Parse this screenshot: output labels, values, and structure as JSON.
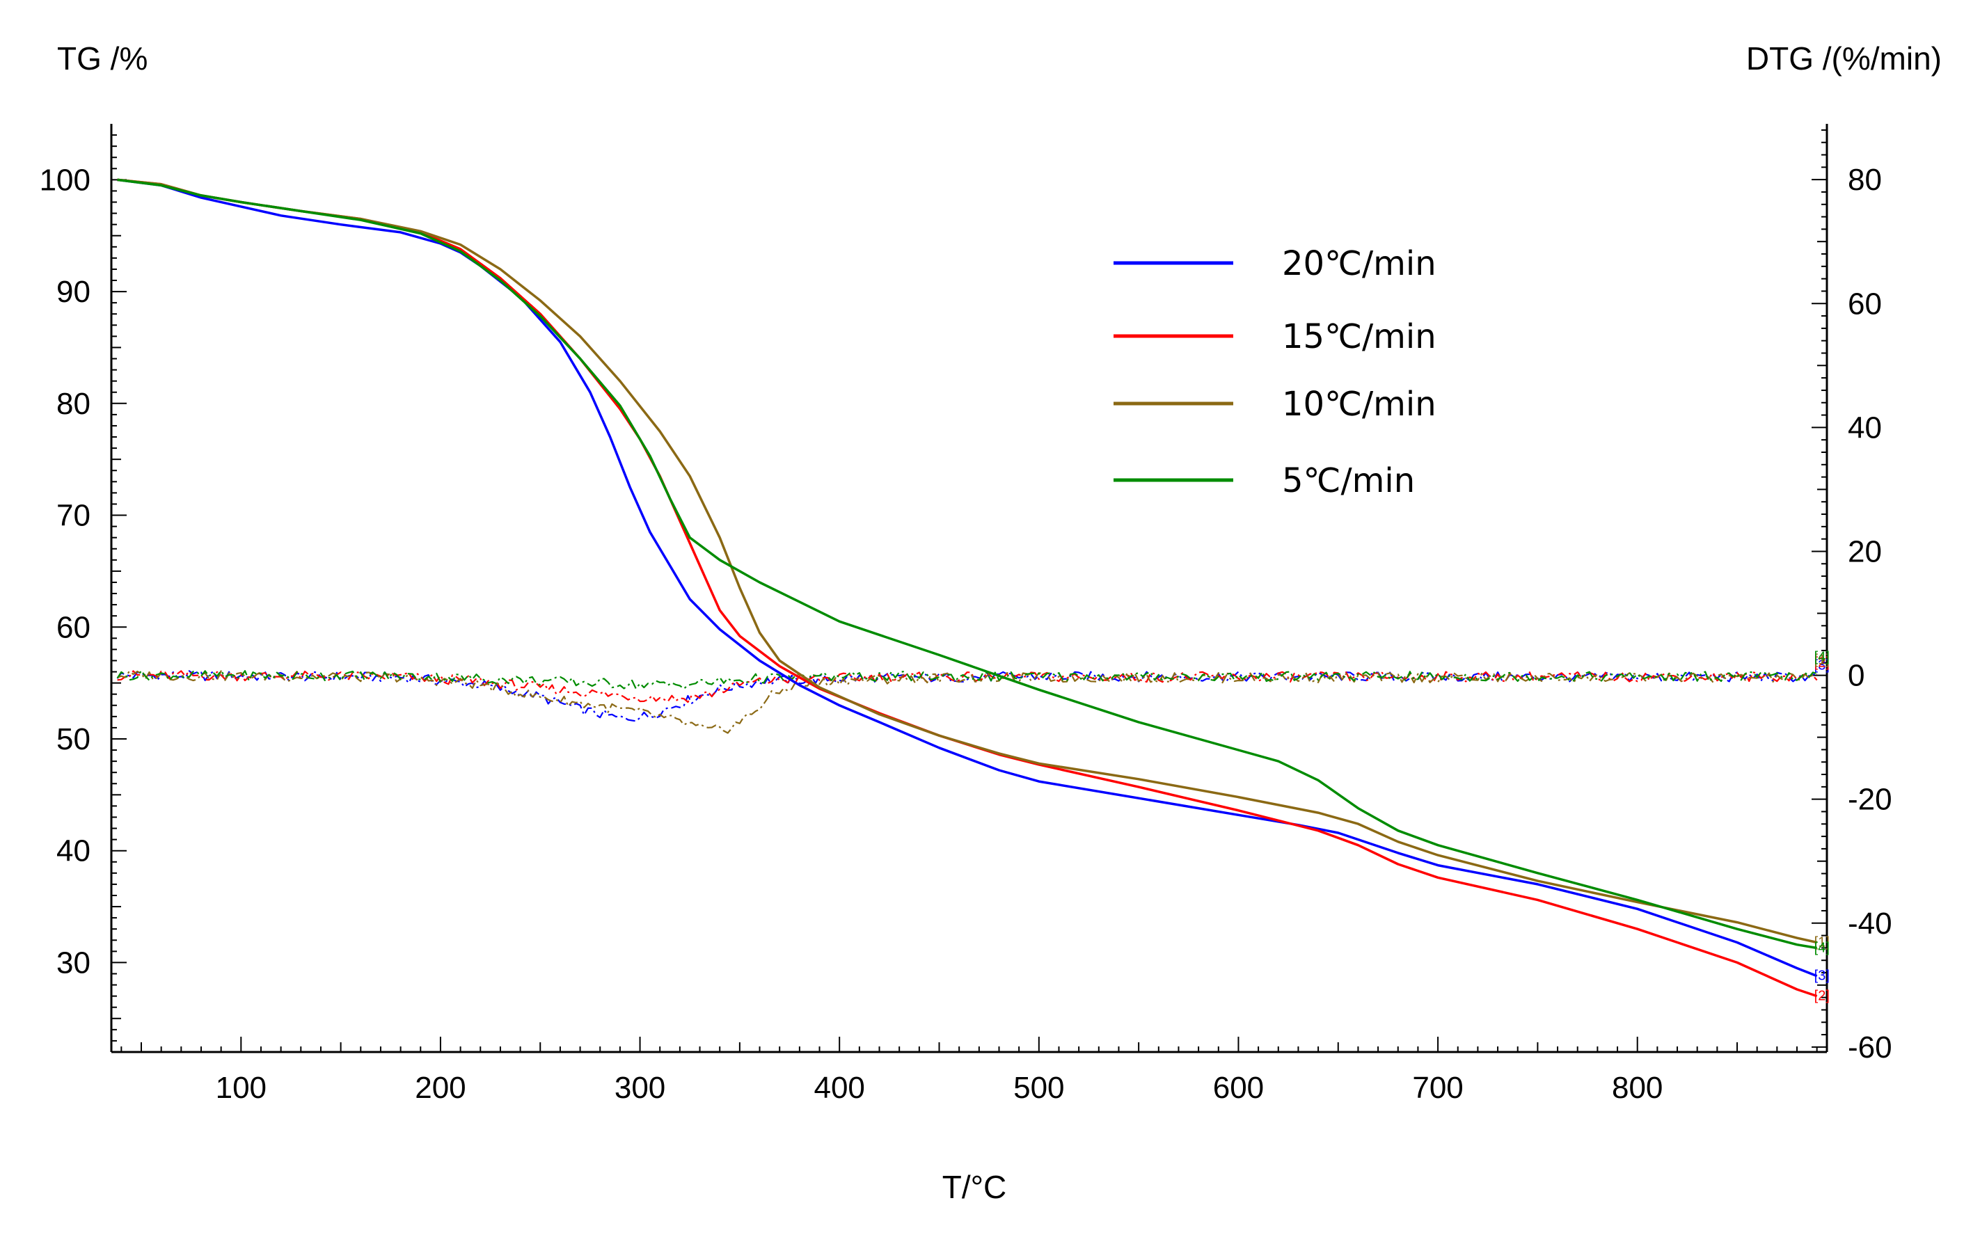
{
  "chart_data": {
    "type": "line",
    "title": "",
    "xlabel": "T/°C",
    "ylabel": "TG /%",
    "y2label": "DTG /(%/min)",
    "xlim": [
      35,
      895
    ],
    "ylim": [
      22,
      105
    ],
    "y2lim": [
      -60.8,
      89
    ],
    "x_ticks": [
      100,
      200,
      300,
      400,
      500,
      600,
      700,
      800
    ],
    "y_ticks": [
      30,
      40,
      50,
      60,
      70,
      80,
      90,
      100
    ],
    "y2_ticks": [
      -60,
      -40,
      -20,
      0,
      20,
      40,
      60,
      80
    ],
    "grid": false,
    "legend_position": "top-right",
    "series": [
      {
        "name": "20℃/min",
        "color": "#0000ff",
        "end_marker": "[3]",
        "tg": [
          [
            38,
            100
          ],
          [
            60,
            99.5
          ],
          [
            80,
            98.4
          ],
          [
            100,
            97.6
          ],
          [
            120,
            96.8
          ],
          [
            150,
            96.0
          ],
          [
            180,
            95.3
          ],
          [
            200,
            94.3
          ],
          [
            210,
            93.5
          ],
          [
            220,
            92.3
          ],
          [
            240,
            89.5
          ],
          [
            260,
            85.5
          ],
          [
            275,
            81.0
          ],
          [
            285,
            77.0
          ],
          [
            295,
            72.5
          ],
          [
            305,
            68.5
          ],
          [
            315,
            65.5
          ],
          [
            325,
            62.5
          ],
          [
            340,
            59.8
          ],
          [
            360,
            57.0
          ],
          [
            380,
            54.8
          ],
          [
            400,
            53.0
          ],
          [
            420,
            51.5
          ],
          [
            450,
            49.2
          ],
          [
            480,
            47.2
          ],
          [
            500,
            46.2
          ],
          [
            550,
            44.7
          ],
          [
            600,
            43.2
          ],
          [
            630,
            42.3
          ],
          [
            650,
            41.6
          ],
          [
            680,
            39.8
          ],
          [
            700,
            38.7
          ],
          [
            750,
            37.0
          ],
          [
            800,
            34.8
          ],
          [
            850,
            31.8
          ],
          [
            880,
            29.5
          ],
          [
            890,
            28.8
          ]
        ],
        "dtg": [
          [
            38,
            0
          ],
          [
            180,
            -0.3
          ],
          [
            220,
            -1.5
          ],
          [
            250,
            -3.5
          ],
          [
            270,
            -5.5
          ],
          [
            290,
            -7.0
          ],
          [
            305,
            -6.5
          ],
          [
            320,
            -4.5
          ],
          [
            340,
            -2.2
          ],
          [
            360,
            -1.0
          ],
          [
            400,
            -0.5
          ],
          [
            500,
            -0.2
          ],
          [
            890,
            -0.3
          ]
        ]
      },
      {
        "name": "15℃/min",
        "color": "#ff0000",
        "end_marker": "[2]",
        "tg": [
          [
            38,
            100
          ],
          [
            60,
            99.6
          ],
          [
            80,
            98.6
          ],
          [
            100,
            98.0
          ],
          [
            130,
            97.2
          ],
          [
            160,
            96.5
          ],
          [
            190,
            95.3
          ],
          [
            210,
            93.8
          ],
          [
            230,
            91.2
          ],
          [
            250,
            88.0
          ],
          [
            270,
            84.0
          ],
          [
            290,
            79.5
          ],
          [
            300,
            76.8
          ],
          [
            310,
            73.5
          ],
          [
            320,
            69.5
          ],
          [
            330,
            65.5
          ],
          [
            340,
            61.5
          ],
          [
            350,
            59.2
          ],
          [
            370,
            56.5
          ],
          [
            390,
            54.5
          ],
          [
            420,
            52.3
          ],
          [
            450,
            50.3
          ],
          [
            480,
            48.6
          ],
          [
            500,
            47.7
          ],
          [
            550,
            45.7
          ],
          [
            600,
            43.6
          ],
          [
            640,
            41.8
          ],
          [
            660,
            40.5
          ],
          [
            680,
            38.8
          ],
          [
            700,
            37.6
          ],
          [
            750,
            35.6
          ],
          [
            800,
            33.0
          ],
          [
            850,
            30.0
          ],
          [
            880,
            27.6
          ],
          [
            890,
            27.0
          ]
        ],
        "dtg": [
          [
            38,
            0
          ],
          [
            180,
            -0.2
          ],
          [
            220,
            -1.0
          ],
          [
            250,
            -2.0
          ],
          [
            280,
            -3.0
          ],
          [
            300,
            -3.5
          ],
          [
            320,
            -3.8
          ],
          [
            335,
            -3.0
          ],
          [
            350,
            -1.5
          ],
          [
            370,
            -0.7
          ],
          [
            420,
            -0.3
          ],
          [
            890,
            -0.2
          ]
        ]
      },
      {
        "name": "10℃/min",
        "color": "#8b6914",
        "end_marker": "[1]",
        "tg": [
          [
            38,
            100
          ],
          [
            60,
            99.6
          ],
          [
            80,
            98.6
          ],
          [
            100,
            98.0
          ],
          [
            130,
            97.2
          ],
          [
            160,
            96.5
          ],
          [
            190,
            95.4
          ],
          [
            210,
            94.2
          ],
          [
            230,
            92.0
          ],
          [
            250,
            89.2
          ],
          [
            270,
            86.0
          ],
          [
            290,
            82.0
          ],
          [
            310,
            77.5
          ],
          [
            325,
            73.5
          ],
          [
            340,
            68.0
          ],
          [
            350,
            63.5
          ],
          [
            360,
            59.5
          ],
          [
            370,
            57.0
          ],
          [
            390,
            54.6
          ],
          [
            420,
            52.2
          ],
          [
            450,
            50.3
          ],
          [
            480,
            48.7
          ],
          [
            500,
            47.8
          ],
          [
            550,
            46.4
          ],
          [
            600,
            44.8
          ],
          [
            640,
            43.4
          ],
          [
            660,
            42.4
          ],
          [
            680,
            40.8
          ],
          [
            700,
            39.6
          ],
          [
            750,
            37.3
          ],
          [
            800,
            35.4
          ],
          [
            850,
            33.6
          ],
          [
            880,
            32.2
          ],
          [
            890,
            31.8
          ]
        ],
        "dtg": [
          [
            38,
            0
          ],
          [
            180,
            -0.3
          ],
          [
            220,
            -1.5
          ],
          [
            250,
            -3.5
          ],
          [
            280,
            -5.0
          ],
          [
            300,
            -6.0
          ],
          [
            320,
            -7.5
          ],
          [
            335,
            -9.0
          ],
          [
            345,
            -8.5
          ],
          [
            355,
            -6.5
          ],
          [
            365,
            -3.5
          ],
          [
            375,
            -1.8
          ],
          [
            400,
            -0.8
          ],
          [
            450,
            -0.4
          ],
          [
            890,
            -0.4
          ]
        ]
      },
      {
        "name": "5℃/min",
        "color": "#008c00",
        "end_marker": "[4]",
        "tg": [
          [
            38,
            100
          ],
          [
            60,
            99.5
          ],
          [
            80,
            98.6
          ],
          [
            100,
            98.0
          ],
          [
            130,
            97.2
          ],
          [
            160,
            96.4
          ],
          [
            190,
            95.2
          ],
          [
            210,
            93.6
          ],
          [
            230,
            91.0
          ],
          [
            250,
            87.8
          ],
          [
            270,
            84.0
          ],
          [
            290,
            79.8
          ],
          [
            305,
            75.3
          ],
          [
            315,
            71.5
          ],
          [
            325,
            68.0
          ],
          [
            340,
            66.0
          ],
          [
            360,
            64.0
          ],
          [
            400,
            60.5
          ],
          [
            450,
            57.5
          ],
          [
            500,
            54.4
          ],
          [
            550,
            51.5
          ],
          [
            600,
            49.0
          ],
          [
            620,
            48.0
          ],
          [
            640,
            46.3
          ],
          [
            660,
            43.8
          ],
          [
            680,
            41.8
          ],
          [
            700,
            40.5
          ],
          [
            750,
            38.0
          ],
          [
            800,
            35.6
          ],
          [
            850,
            33.0
          ],
          [
            880,
            31.6
          ],
          [
            890,
            31.3
          ]
        ],
        "dtg": [
          [
            38,
            0
          ],
          [
            180,
            -0.1
          ],
          [
            220,
            -0.5
          ],
          [
            260,
            -1.0
          ],
          [
            300,
            -1.5
          ],
          [
            320,
            -1.5
          ],
          [
            340,
            -1.0
          ],
          [
            360,
            -0.5
          ],
          [
            400,
            -0.2
          ],
          [
            890,
            -0.2
          ]
        ]
      }
    ]
  }
}
